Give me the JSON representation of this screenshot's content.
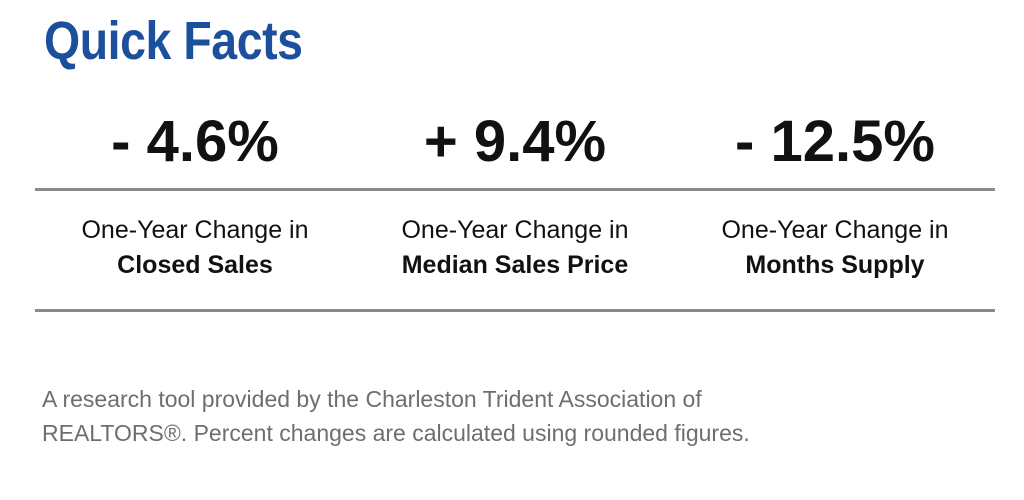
{
  "title": "Quick Facts",
  "facts": [
    {
      "value": "- 4.6%",
      "label_line1": "One-Year Change in",
      "label_line2": "Closed Sales"
    },
    {
      "value": "+ 9.4%",
      "label_line1": "One-Year Change in",
      "label_line2": "Median Sales Price"
    },
    {
      "value": "- 12.5%",
      "label_line1": "One-Year Change in",
      "label_line2": "Months Supply"
    }
  ],
  "footer": {
    "line1": "A research tool provided by the Charleston Trident Association of",
    "line2": "REALTORS®. Percent changes are calculated using rounded figures."
  },
  "colors": {
    "title": "#1c4f9c",
    "text": "#111111",
    "rule": "#8a8a8a",
    "footer": "#6e6e6e"
  }
}
